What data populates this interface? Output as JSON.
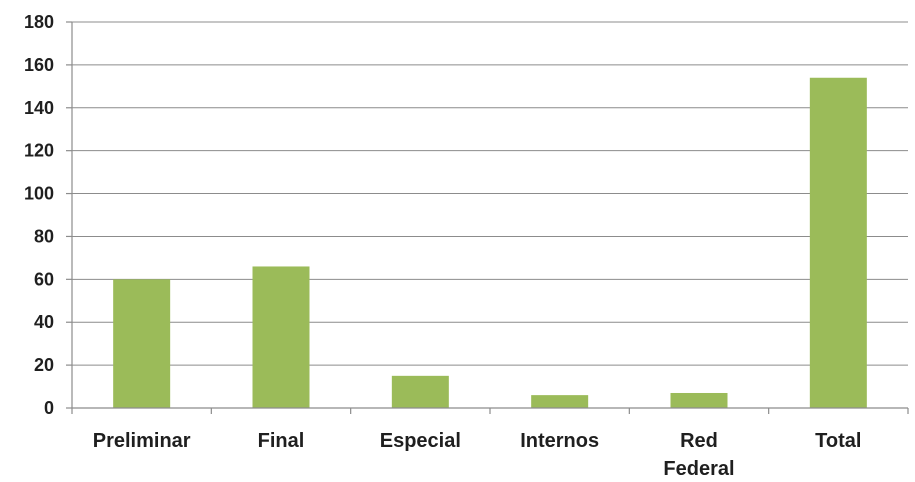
{
  "chart_data": {
    "type": "bar",
    "categories": [
      "Preliminar",
      "Final",
      "Especial",
      "Internos",
      "Red Federal",
      "Total"
    ],
    "values": [
      60,
      66,
      15,
      6,
      7,
      154
    ],
    "ylim": [
      0,
      180
    ],
    "yticks": [
      0,
      20,
      40,
      60,
      80,
      100,
      120,
      140,
      160,
      180
    ],
    "grid": true,
    "legend": "none",
    "colors": {
      "bar": "#9bbb59",
      "grid": "#8c8c8c",
      "text": "#1f1f1f"
    }
  }
}
